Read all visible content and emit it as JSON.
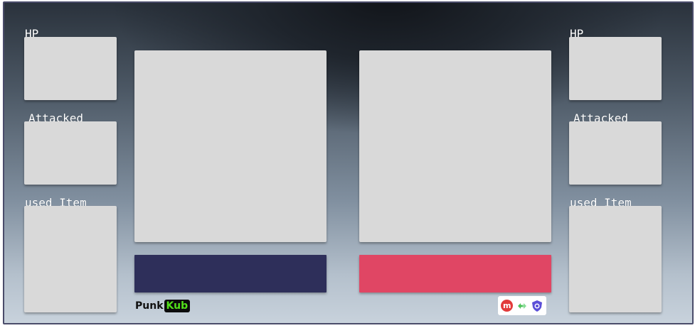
{
  "left_player": {
    "hp_label": "HP",
    "attacked_label": "Attacked",
    "used_item_label": "used Item",
    "bar_color": "#2e2f5a"
  },
  "right_player": {
    "hp_label": "HP",
    "attacked_label": "Attacked",
    "used_item_label": "used Item",
    "bar_color": "#e04664"
  },
  "branding": {
    "logo_part1": "Punk",
    "logo_part2": "Kub",
    "logo_accent": "#52e21a",
    "badge_m": "m",
    "badges": [
      "m-circle-icon",
      "swap-arrows-icon",
      "shield-icon"
    ]
  },
  "colors": {
    "panel": "#d9d9d9",
    "frame_border": "#4a4c6a"
  }
}
